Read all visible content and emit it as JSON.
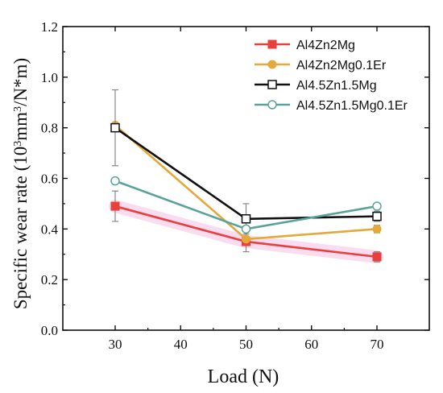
{
  "chart_data": {
    "type": "line",
    "xlabel": "Load (N)",
    "ylabel_prefix": "Specific wear rate (10",
    "ylabel_sup": "3",
    "ylabel_mid": "mm",
    "ylabel_sup2": "3",
    "ylabel_suffix": "/N*m)",
    "xlim": [
      22,
      78
    ],
    "ylim": [
      0,
      1.2
    ],
    "xticks": [
      30,
      40,
      50,
      60,
      70
    ],
    "yticks": [
      0.0,
      0.2,
      0.4,
      0.6,
      0.8,
      1.0,
      1.2
    ],
    "x": [
      30,
      50,
      70
    ],
    "legend_position": "top-right",
    "series": [
      {
        "name": "Al4Zn2Mg",
        "color": "#e8413d",
        "marker": "filled-square",
        "values": [
          0.49,
          0.35,
          0.29
        ],
        "err": [
          0.06,
          0.04,
          0.02
        ]
      },
      {
        "name": "Al4Zn2Mg0.1Er",
        "color": "#e5a83b",
        "marker": "filled-circle",
        "values": [
          0.81,
          0.36,
          0.4
        ],
        "err": [
          0.0,
          0.0,
          0.015
        ]
      },
      {
        "name": "Al4.5Zn1.5Mg",
        "color": "#111111",
        "marker": "open-square",
        "values": [
          0.8,
          0.44,
          0.45
        ],
        "err": [
          0.15,
          0.06,
          0.02
        ]
      },
      {
        "name": "Al4.5Zn1.5Mg0.1Er",
        "color": "#5aa39b",
        "marker": "open-circle",
        "values": [
          0.59,
          0.4,
          0.49
        ],
        "err": [
          0.0,
          0.0,
          0.0
        ]
      }
    ]
  }
}
